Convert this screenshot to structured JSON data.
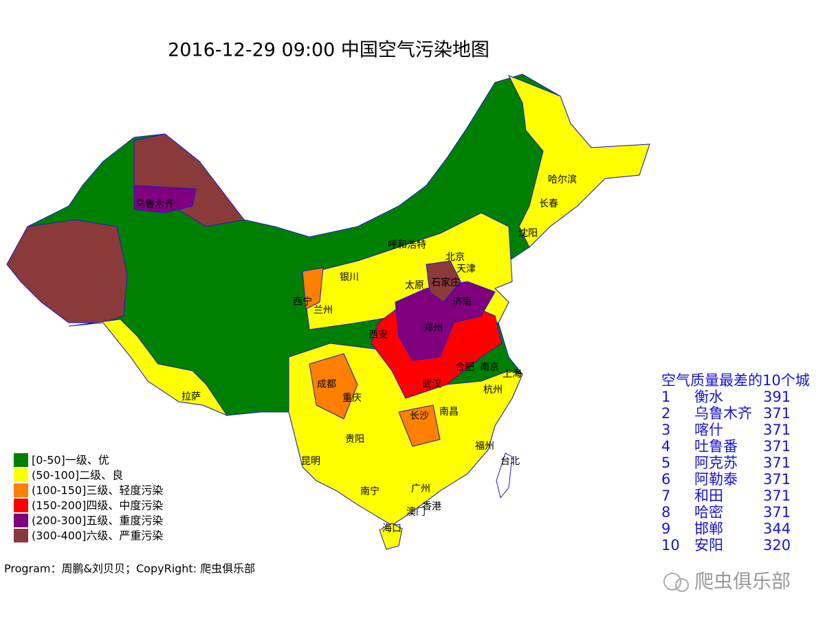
{
  "title": "2016-12-29 09:00 中国空气污染地图",
  "legend": [
    {
      "label": "[0-50]一级、优",
      "color": "#008000"
    },
    {
      "label": "(50-100]二级、良",
      "color": "#ffff00"
    },
    {
      "label": "(100-150]三级、轻度污染",
      "color": "#ff8000"
    },
    {
      "label": "(150-200]四级、中度污染",
      "color": "#ff0000"
    },
    {
      "label": "(200-300]五级、重度污染",
      "color": "#800080"
    },
    {
      "label": "(300-400]六级、严重污染",
      "color": "#8b3a3a"
    }
  ],
  "cities": [
    "乌鲁木齐",
    "拉萨",
    "西宁",
    "兰州",
    "银川",
    "呼和浩特",
    "北京",
    "天津",
    "石家庄",
    "太原",
    "济南",
    "西安",
    "郑州",
    "成都",
    "重庆",
    "合肥",
    "南京",
    "上海",
    "武汉",
    "杭州",
    "长沙",
    "南昌",
    "贵阳",
    "福州",
    "昆明",
    "台北",
    "南宁",
    "广州",
    "香港",
    "澳门",
    "海口",
    "哈尔滨",
    "长春",
    "沈阳"
  ],
  "ranking": {
    "title": "空气质量最差的10个城",
    "rows": [
      {
        "rank": 1,
        "city": "衡水",
        "aqi": 391
      },
      {
        "rank": 2,
        "city": "乌鲁木齐",
        "aqi": 371
      },
      {
        "rank": 3,
        "city": "喀什",
        "aqi": 371
      },
      {
        "rank": 4,
        "city": "吐鲁番",
        "aqi": 371
      },
      {
        "rank": 5,
        "city": "阿克苏",
        "aqi": 371
      },
      {
        "rank": 6,
        "city": "阿勒泰",
        "aqi": 371
      },
      {
        "rank": 7,
        "city": "和田",
        "aqi": 371
      },
      {
        "rank": 8,
        "city": "哈密",
        "aqi": 371
      },
      {
        "rank": 9,
        "city": "邯郸",
        "aqi": 344
      },
      {
        "rank": 10,
        "city": "安阳",
        "aqi": 320
      }
    ]
  },
  "footer": "Program：周鹏&刘贝贝；CopyRight: 爬虫俱乐部",
  "watermark": "爬虫俱乐部"
}
